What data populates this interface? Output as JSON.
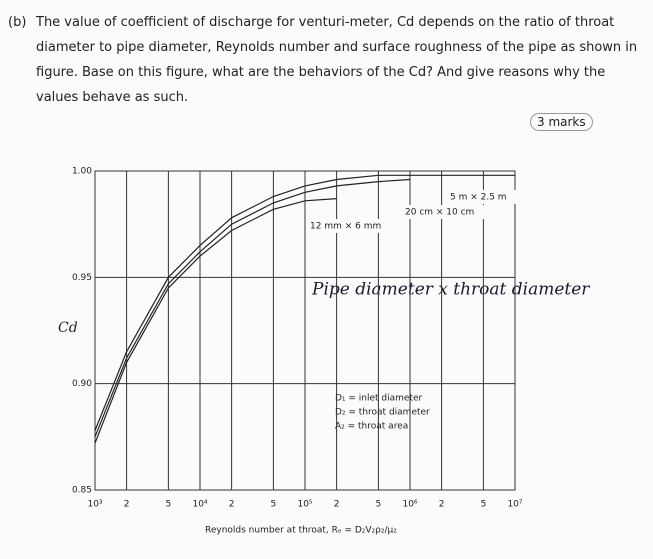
{
  "question": {
    "label": "(b)",
    "text": "The value of coefficient of discharge for venturi-meter, Cd depends on the ratio of throat diameter to pipe diameter, Reynolds number and surface roughness of the pipe as shown in figure. Base on this figure, what are the behaviors of the Cd? And give reasons why the values behave as such.",
    "marks": "3 marks"
  },
  "chart_data": {
    "type": "line",
    "x": [
      1000,
      2000,
      5000,
      10000,
      20000,
      50000,
      100000,
      200000,
      500000,
      1000000,
      2000000,
      5000000,
      10000000
    ],
    "series": [
      {
        "name": "12 mm × 6 mm",
        "color": "#222222",
        "values": [
          0.872,
          0.91,
          0.945,
          0.96,
          0.972,
          0.982,
          0.986,
          0.987,
          null,
          null,
          null,
          null,
          null
        ]
      },
      {
        "name": "20 cm × 10 cm",
        "color": "#222222",
        "values": [
          0.875,
          0.912,
          0.947,
          0.962,
          0.975,
          0.985,
          0.99,
          0.993,
          0.995,
          0.996,
          null,
          null,
          null
        ]
      },
      {
        "name": "5 m × 2.5 m",
        "color": "#222222",
        "values": [
          0.878,
          0.915,
          0.95,
          0.965,
          0.978,
          0.988,
          0.993,
          0.996,
          0.998,
          0.998,
          0.998,
          0.998,
          0.998
        ]
      }
    ],
    "log_x": true,
    "grid": true,
    "xlim": [
      1000,
      10000000
    ],
    "xticks": [
      {
        "value": 1000,
        "label": "10³"
      },
      {
        "value": 2000,
        "label": "2"
      },
      {
        "value": 5000,
        "label": "5"
      },
      {
        "value": 10000,
        "label": "10⁴"
      },
      {
        "value": 20000,
        "label": "2"
      },
      {
        "value": 50000,
        "label": "5"
      },
      {
        "value": 100000,
        "label": "10⁵"
      },
      {
        "value": 200000,
        "label": "2"
      },
      {
        "value": 500000,
        "label": "5"
      },
      {
        "value": 1000000,
        "label": "10⁶"
      },
      {
        "value": 2000000,
        "label": "2"
      },
      {
        "value": 5000000,
        "label": "5"
      },
      {
        "value": 10000000,
        "label": "10⁷"
      }
    ],
    "ylim": [
      0.85,
      1
    ],
    "yticks": [
      0.85,
      {
        "value": 0.9,
        "label": "0.90"
      },
      0.95,
      {
        "value": 1,
        "label": "1.00"
      }
    ],
    "y_label": "Cd",
    "x_label": "Reynolds number at throat, Rₑ = D₂V₂ρ₂/μ₂",
    "annotation": "Pipe diameter x throat diameter",
    "notes": [
      "D₁ = inlet diameter",
      "D₂ = throat diameter",
      "A₂ = throat area"
    ]
  }
}
